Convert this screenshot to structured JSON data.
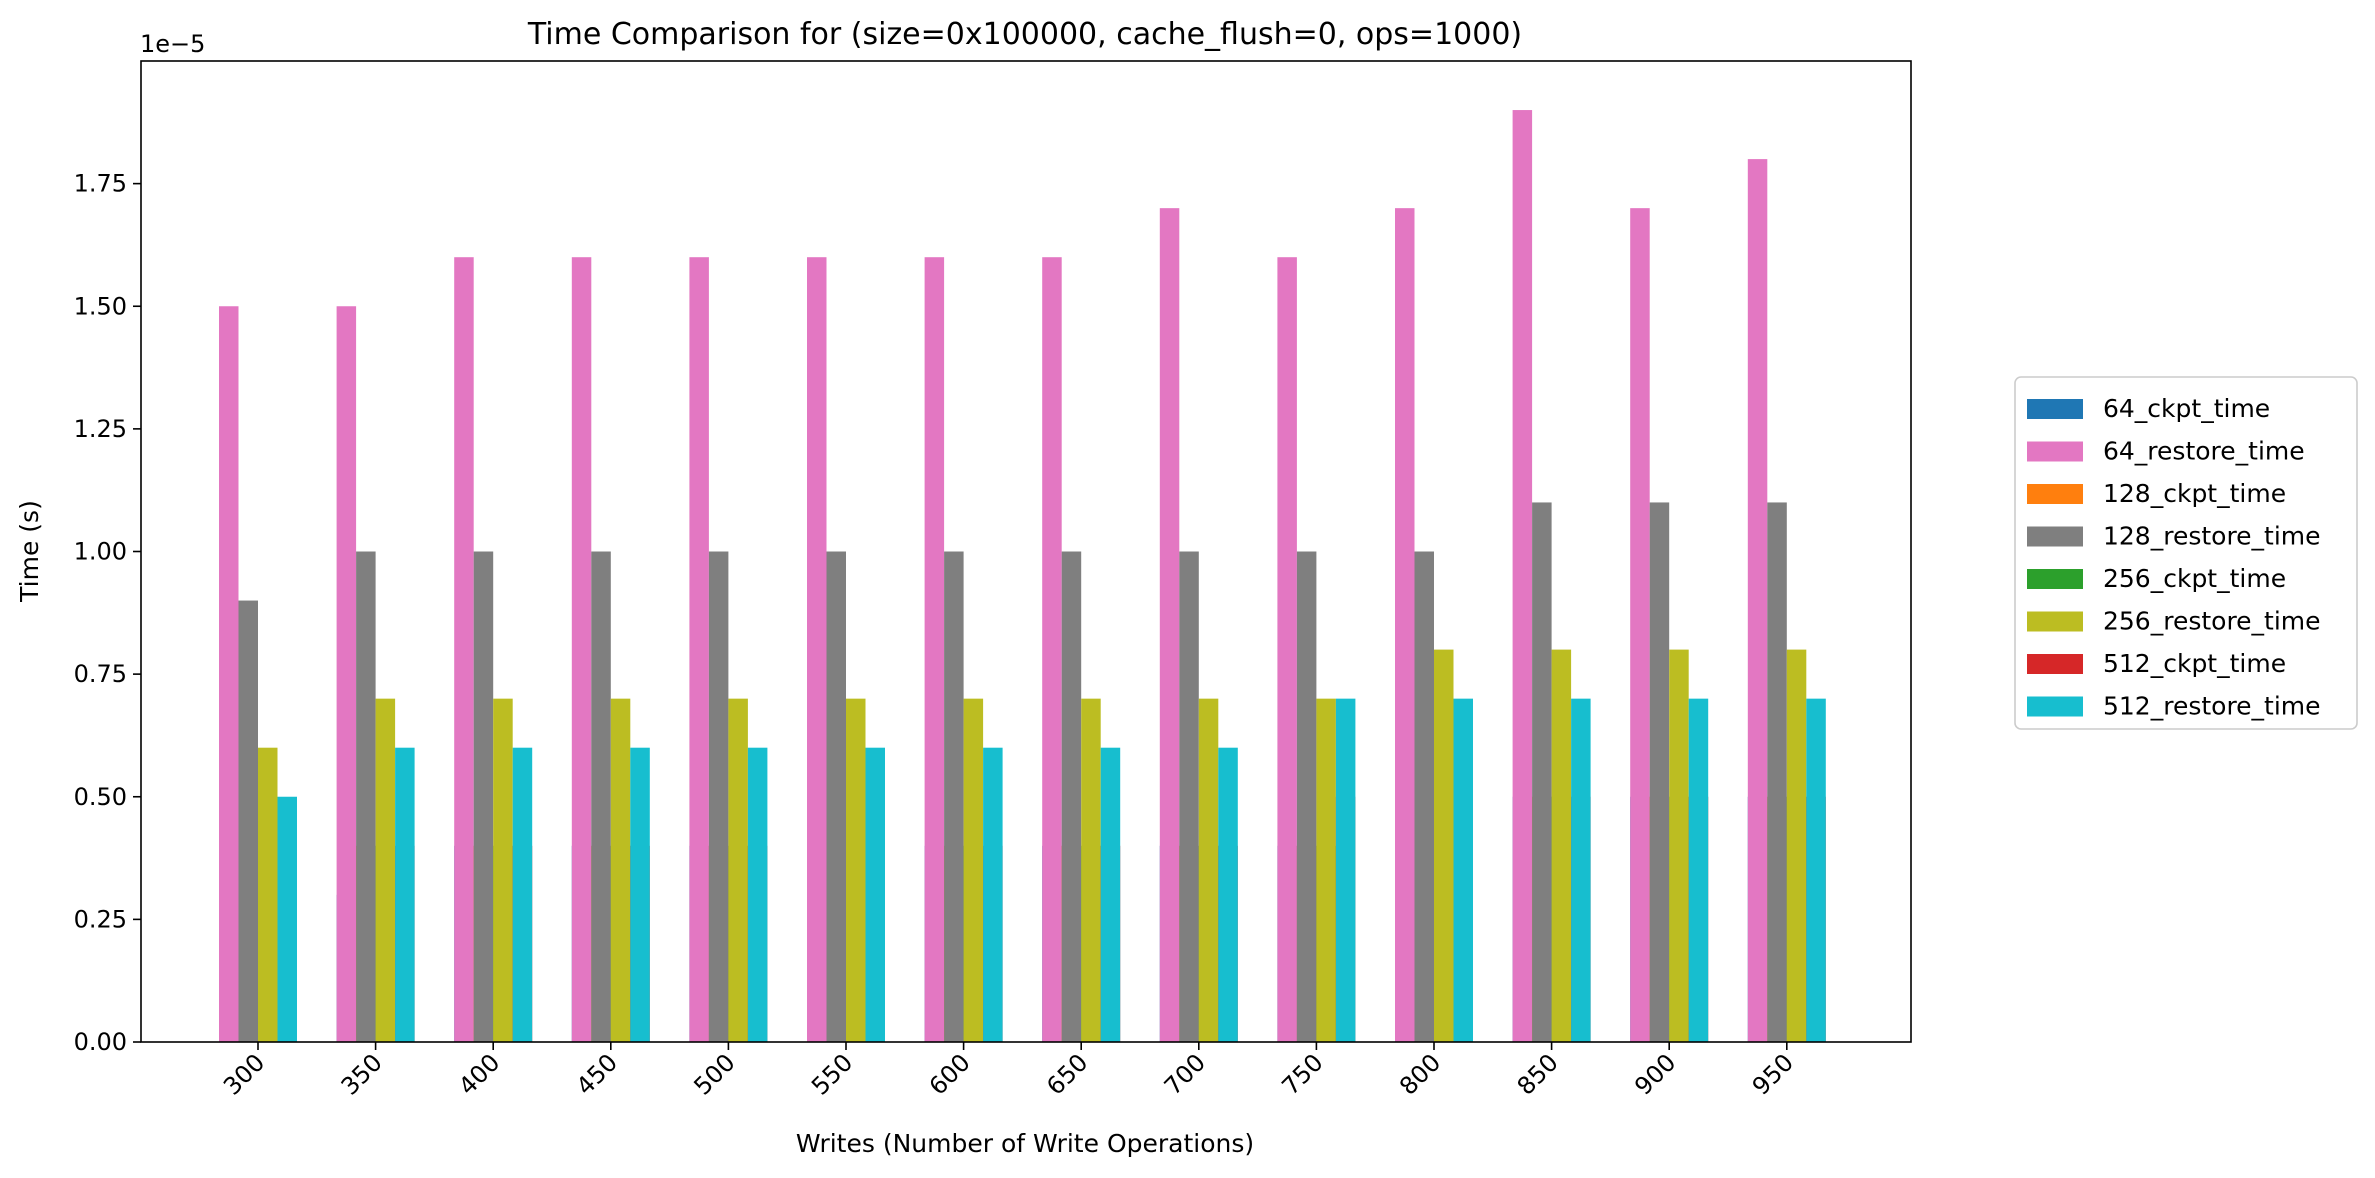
{
  "chart_data": {
    "type": "bar",
    "title": "Time Comparison for (size=0x100000, cache_flush=0, ops=1000)",
    "xlabel": "Writes (Number of Write Operations)",
    "ylabel": "Time (s)",
    "y_scale_note": "1e−5",
    "ylim": [
      0,
      2.0
    ],
    "y_ticks": [
      "0.00",
      "0.25",
      "0.50",
      "0.75",
      "1.00",
      "1.25",
      "1.50",
      "1.75"
    ],
    "categories": [
      "300",
      "350",
      "400",
      "450",
      "500",
      "550",
      "600",
      "650",
      "700",
      "750",
      "800",
      "850",
      "900",
      "950"
    ],
    "legend_placement": "right",
    "series": [
      {
        "name": "64_ckpt_time",
        "color": "#1f77b4",
        "slot": 0,
        "values": [
          0.3,
          0.3,
          0.4,
          0.4,
          0.4,
          0.4,
          0.4,
          0.4,
          0.4,
          0.4,
          0.4,
          0.5,
          0.5,
          0.5
        ]
      },
      {
        "name": "64_restore_time",
        "color": "#e377c2",
        "slot": 0,
        "values": [
          1.5,
          1.5,
          1.6,
          1.6,
          1.6,
          1.6,
          1.6,
          1.6,
          1.7,
          1.6,
          1.7,
          1.9,
          1.7,
          1.8
        ]
      },
      {
        "name": "128_ckpt_time",
        "color": "#ff7f0e",
        "slot": 1,
        "values": [
          0.3,
          0.4,
          0.4,
          0.4,
          0.4,
          0.4,
          0.4,
          0.4,
          0.4,
          0.4,
          0.4,
          0.5,
          0.5,
          0.5
        ]
      },
      {
        "name": "128_restore_time",
        "color": "#7f7f7f",
        "slot": 1,
        "values": [
          0.9,
          1.0,
          1.0,
          1.0,
          1.0,
          1.0,
          1.0,
          1.0,
          1.0,
          1.0,
          1.0,
          1.1,
          1.1,
          1.1
        ]
      },
      {
        "name": "256_ckpt_time",
        "color": "#2ca02c",
        "slot": 2,
        "values": [
          0.3,
          0.4,
          0.4,
          0.4,
          0.4,
          0.4,
          0.4,
          0.4,
          0.4,
          0.4,
          0.5,
          0.5,
          0.5,
          0.5
        ]
      },
      {
        "name": "256_restore_time",
        "color": "#bcbd22",
        "slot": 2,
        "values": [
          0.6,
          0.7,
          0.7,
          0.7,
          0.7,
          0.7,
          0.7,
          0.7,
          0.7,
          0.7,
          0.8,
          0.8,
          0.8,
          0.8
        ]
      },
      {
        "name": "512_ckpt_time",
        "color": "#d62728",
        "slot": 3,
        "values": [
          0.3,
          0.4,
          0.4,
          0.4,
          0.4,
          0.4,
          0.4,
          0.4,
          0.4,
          0.5,
          0.5,
          0.5,
          0.5,
          0.5
        ]
      },
      {
        "name": "512_restore_time",
        "color": "#17becf",
        "slot": 3,
        "values": [
          0.5,
          0.6,
          0.6,
          0.6,
          0.6,
          0.6,
          0.6,
          0.6,
          0.6,
          0.7,
          0.7,
          0.7,
          0.7,
          0.7
        ]
      }
    ]
  }
}
